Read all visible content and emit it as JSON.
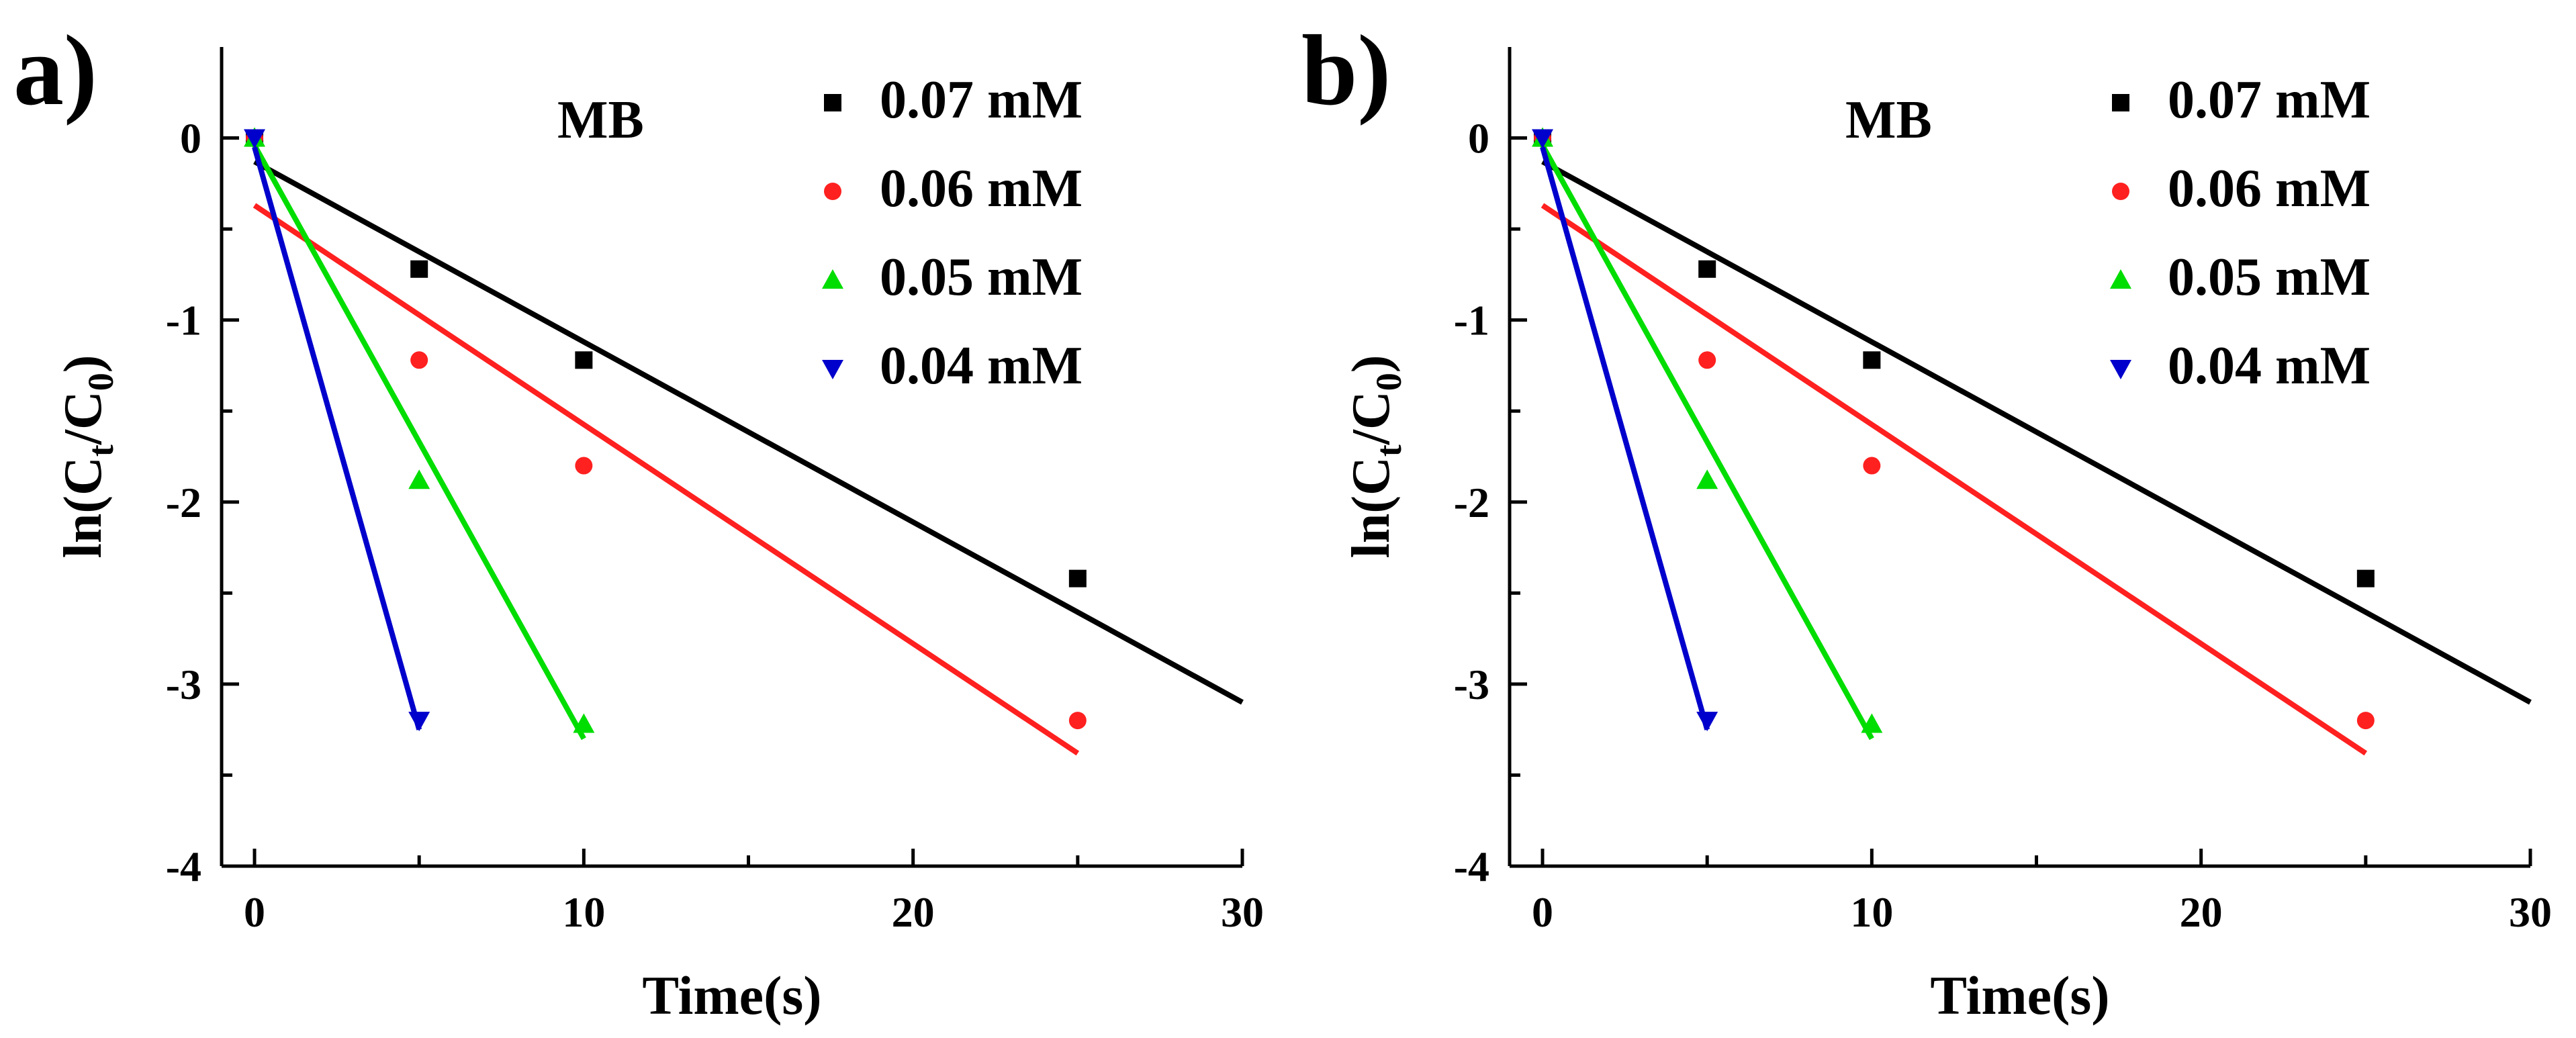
{
  "chart_data": [
    {
      "type": "scatter",
      "panel_label": "a)",
      "annotation": "MB",
      "xlabel": "Time(s)",
      "ylabel": "ln(Ct/C0)",
      "ylabel_parts": {
        "prefix": "ln(C",
        "sub1": "t",
        "mid": "/C",
        "sub2": "0",
        "suffix": ")"
      },
      "xlim": [
        -1,
        30
      ],
      "ylim": [
        -4,
        0.5
      ],
      "xticks": [
        0,
        10,
        20,
        30
      ],
      "yticks": [
        0,
        -1,
        -2,
        -3,
        -4
      ],
      "legend_position": "top-right",
      "series": [
        {
          "name": "0.07 mM",
          "marker": "square",
          "color": "#000000",
          "x": [
            0,
            5,
            10,
            25
          ],
          "y": [
            0,
            -0.72,
            -1.22,
            -2.42
          ],
          "fit": {
            "x0": 0,
            "y0": -0.13,
            "x1": 30,
            "y1": -3.1
          }
        },
        {
          "name": "0.06 mM",
          "marker": "circle",
          "color": "#ff2020",
          "x": [
            0,
            5,
            10,
            25
          ],
          "y": [
            0,
            -1.22,
            -1.8,
            -3.2
          ],
          "fit": {
            "x0": 0,
            "y0": -0.37,
            "x1": 25,
            "y1": -3.38
          }
        },
        {
          "name": "0.05 mM",
          "marker": "triangle-up",
          "color": "#00dd00",
          "x": [
            0,
            5,
            10
          ],
          "y": [
            0,
            -1.88,
            -3.22
          ],
          "fit": {
            "x0": 0,
            "y0": -0.04,
            "x1": 10,
            "y1": -3.3
          }
        },
        {
          "name": "0.04 mM",
          "marker": "triangle-down",
          "color": "#0000cc",
          "x": [
            0,
            5
          ],
          "y": [
            0,
            -3.2
          ],
          "fit": {
            "x0": 0,
            "y0": -0.05,
            "x1": 5,
            "y1": -3.25
          }
        }
      ]
    },
    {
      "type": "scatter",
      "panel_label": "b)",
      "annotation": "MB",
      "xlabel": "Time(s)",
      "ylabel": "ln(Ct/C0)",
      "ylabel_parts": {
        "prefix": "ln(C",
        "sub1": "t",
        "mid": "/C",
        "sub2": "0",
        "suffix": ")"
      },
      "xlim": [
        -1,
        30
      ],
      "ylim": [
        -4,
        0.5
      ],
      "xticks": [
        0,
        10,
        20,
        30
      ],
      "yticks": [
        0,
        -1,
        -2,
        -3,
        -4
      ],
      "legend_position": "top-right",
      "series": [
        {
          "name": "0.07 mM",
          "marker": "square",
          "color": "#000000",
          "x": [
            0,
            5,
            10,
            25
          ],
          "y": [
            0,
            -0.72,
            -1.22,
            -2.42
          ],
          "fit": {
            "x0": 0,
            "y0": -0.13,
            "x1": 30,
            "y1": -3.1
          }
        },
        {
          "name": "0.06 mM",
          "marker": "circle",
          "color": "#ff2020",
          "x": [
            0,
            5,
            10,
            25
          ],
          "y": [
            0,
            -1.22,
            -1.8,
            -3.2
          ],
          "fit": {
            "x0": 0,
            "y0": -0.37,
            "x1": 25,
            "y1": -3.38
          }
        },
        {
          "name": "0.05 mM",
          "marker": "triangle-up",
          "color": "#00dd00",
          "x": [
            0,
            5,
            10
          ],
          "y": [
            0,
            -1.88,
            -3.22
          ],
          "fit": {
            "x0": 0,
            "y0": -0.04,
            "x1": 10,
            "y1": -3.3
          }
        },
        {
          "name": "0.04 mM",
          "marker": "triangle-down",
          "color": "#0000cc",
          "x": [
            0,
            5
          ],
          "y": [
            0,
            -3.2
          ],
          "fit": {
            "x0": 0,
            "y0": -0.05,
            "x1": 5,
            "y1": -3.25
          }
        }
      ]
    }
  ]
}
